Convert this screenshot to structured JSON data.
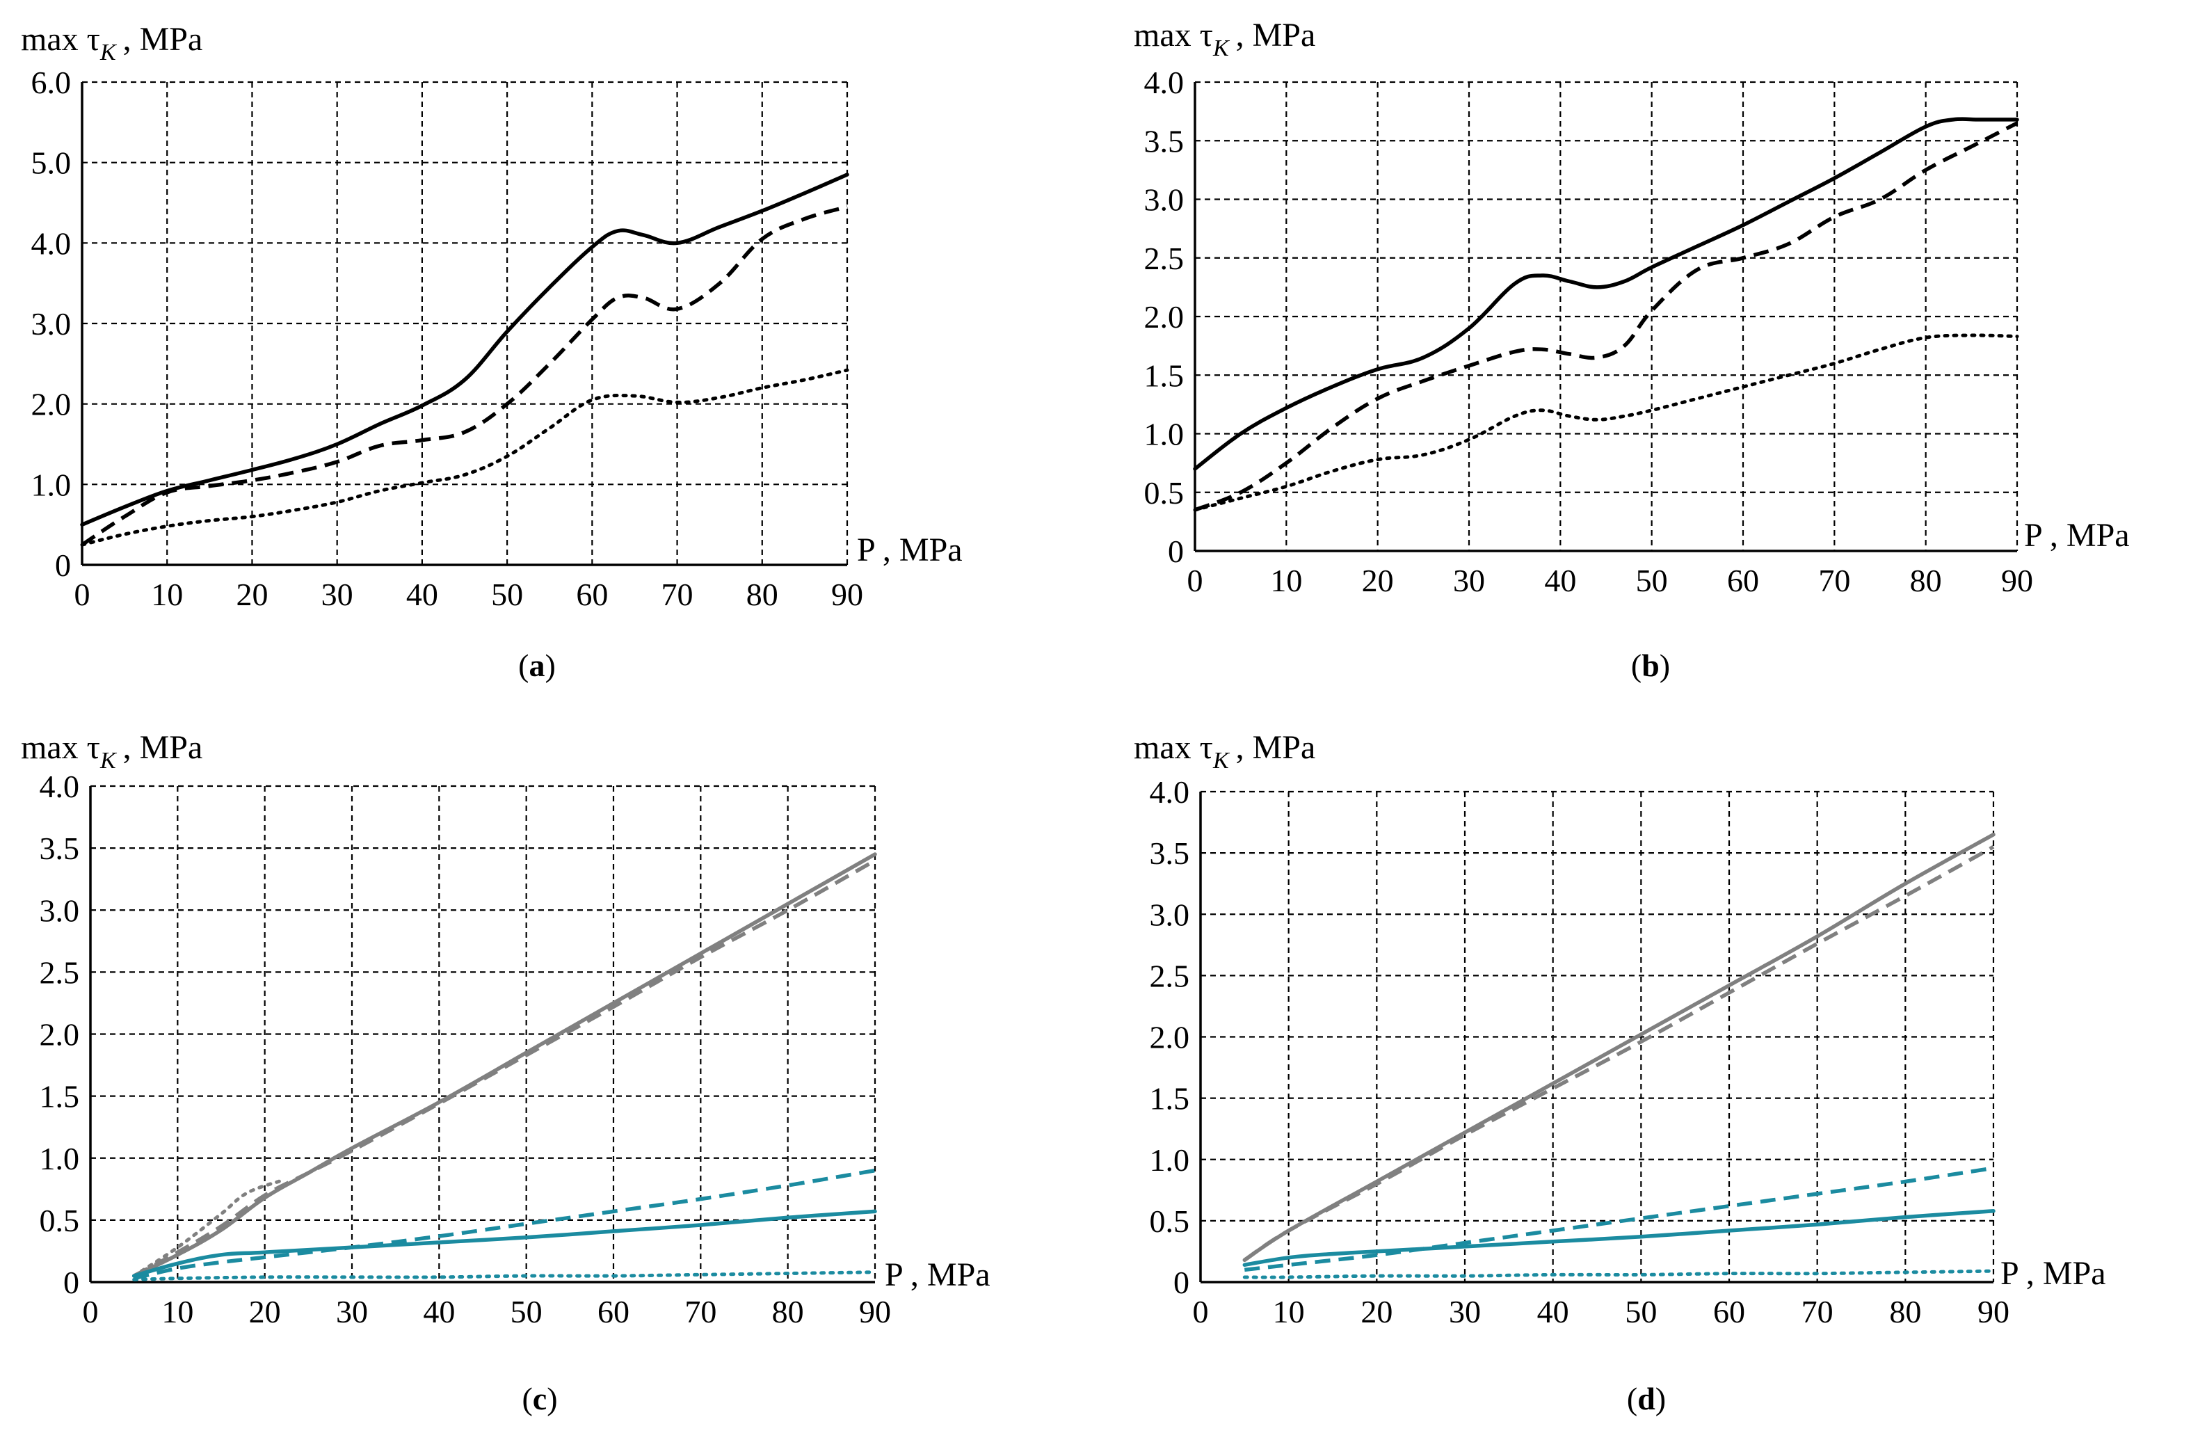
{
  "figure": {
    "charts": [
      {
        "caption_pre": "(",
        "caption_letter": "a",
        "caption_post": ")",
        "ylabel_prefix": "max τ",
        "ylabel_sub": "K",
        "ylabel_suffix": ", MPa",
        "xlabel": "P , MPa"
      },
      {
        "caption_pre": "(",
        "caption_letter": "b",
        "caption_post": ")",
        "ylabel_prefix": "max τ",
        "ylabel_sub": "K",
        "ylabel_suffix": ", MPa",
        "xlabel": "P , MPa"
      },
      {
        "caption_pre": "(",
        "caption_letter": "c",
        "caption_post": ")",
        "ylabel_prefix": "max τ",
        "ylabel_sub": "K",
        "ylabel_suffix": ", MPa",
        "xlabel": "P , MPa"
      },
      {
        "caption_pre": "(",
        "caption_letter": "d",
        "caption_post": ")",
        "ylabel_prefix": "max τ",
        "ylabel_sub": "K",
        "ylabel_suffix": ", MPa",
        "xlabel": "P , MPa"
      }
    ]
  },
  "chart_data": [
    {
      "type": "line",
      "id": "a",
      "title": "(a)",
      "xlabel": "P , MPa",
      "ylabel": "max τK , MPa",
      "xlim": [
        0,
        90
      ],
      "ylim": [
        0,
        6
      ],
      "grid": true,
      "x_ticks": [
        "0",
        "10",
        "20",
        "30",
        "40",
        "50",
        "60",
        "70",
        "80",
        "90"
      ],
      "y_ticks": [
        "0",
        "1.0",
        "2.0",
        "3.0",
        "4.0",
        "5.0",
        "6.0"
      ],
      "series": [
        {
          "name": "solid",
          "color": "#000000",
          "style": "solid",
          "x": [
            0,
            5,
            10,
            15,
            20,
            25,
            30,
            35,
            40,
            45,
            50,
            55,
            60,
            63,
            66,
            70,
            75,
            80,
            85,
            90
          ],
          "y": [
            0.5,
            0.72,
            0.92,
            1.05,
            1.18,
            1.32,
            1.5,
            1.75,
            1.98,
            2.3,
            2.9,
            3.45,
            3.95,
            4.15,
            4.1,
            4.0,
            4.2,
            4.4,
            4.62,
            4.85
          ]
        },
        {
          "name": "dashed",
          "color": "#000000",
          "style": "dashed",
          "x": [
            0,
            5,
            10,
            15,
            20,
            25,
            30,
            35,
            40,
            45,
            50,
            55,
            60,
            63,
            66,
            70,
            75,
            80,
            85,
            90
          ],
          "y": [
            0.25,
            0.6,
            0.9,
            0.98,
            1.05,
            1.15,
            1.28,
            1.48,
            1.55,
            1.65,
            2.0,
            2.5,
            3.05,
            3.32,
            3.32,
            3.18,
            3.5,
            4.05,
            4.3,
            4.45
          ]
        },
        {
          "name": "dotted",
          "color": "#000000",
          "style": "dotted",
          "x": [
            0,
            5,
            10,
            15,
            20,
            25,
            30,
            35,
            40,
            45,
            50,
            55,
            60,
            65,
            70,
            75,
            80,
            85,
            90
          ],
          "y": [
            0.25,
            0.38,
            0.48,
            0.55,
            0.6,
            0.68,
            0.78,
            0.92,
            1.02,
            1.12,
            1.35,
            1.7,
            2.05,
            2.1,
            2.02,
            2.08,
            2.2,
            2.3,
            2.42
          ]
        }
      ]
    },
    {
      "type": "line",
      "id": "b",
      "title": "(b)",
      "xlabel": "P , MPa",
      "ylabel": "max τK , MPa",
      "xlim": [
        0,
        90
      ],
      "ylim": [
        0,
        4
      ],
      "grid": true,
      "x_ticks": [
        "0",
        "10",
        "20",
        "30",
        "40",
        "50",
        "60",
        "70",
        "80",
        "90"
      ],
      "y_ticks": [
        "0",
        "0.5",
        "1.0",
        "1.5",
        "2.0",
        "2.5",
        "3.0",
        "3.5",
        "4.0"
      ],
      "series": [
        {
          "name": "solid",
          "color": "#000000",
          "style": "solid",
          "x": [
            0,
            5,
            10,
            15,
            20,
            25,
            30,
            35,
            38,
            41,
            44,
            47,
            50,
            55,
            60,
            65,
            70,
            75,
            80,
            83,
            86,
            90
          ],
          "y": [
            0.7,
            1.0,
            1.22,
            1.4,
            1.55,
            1.65,
            1.9,
            2.28,
            2.35,
            2.3,
            2.25,
            2.3,
            2.42,
            2.6,
            2.78,
            2.98,
            3.18,
            3.4,
            3.62,
            3.68,
            3.68,
            3.68
          ]
        },
        {
          "name": "dashed",
          "color": "#000000",
          "style": "dashed",
          "x": [
            0,
            5,
            10,
            15,
            20,
            25,
            30,
            35,
            38,
            41,
            44,
            47,
            50,
            55,
            60,
            65,
            70,
            75,
            80,
            85,
            90
          ],
          "y": [
            0.35,
            0.5,
            0.75,
            1.05,
            1.3,
            1.45,
            1.58,
            1.7,
            1.72,
            1.68,
            1.65,
            1.75,
            2.05,
            2.4,
            2.5,
            2.62,
            2.85,
            3.0,
            3.25,
            3.45,
            3.65
          ]
        },
        {
          "name": "dotted",
          "color": "#000000",
          "style": "dotted",
          "x": [
            0,
            5,
            10,
            15,
            20,
            25,
            30,
            35,
            38,
            41,
            44,
            47,
            50,
            55,
            60,
            65,
            70,
            75,
            80,
            85,
            90
          ],
          "y": [
            0.35,
            0.45,
            0.55,
            0.68,
            0.78,
            0.82,
            0.95,
            1.15,
            1.2,
            1.15,
            1.12,
            1.15,
            1.2,
            1.3,
            1.4,
            1.5,
            1.6,
            1.72,
            1.82,
            1.84,
            1.83
          ]
        }
      ]
    },
    {
      "type": "line",
      "id": "c",
      "title": "(c)",
      "xlabel": "P , MPa",
      "ylabel": "max τK , MPa",
      "xlim": [
        0,
        90
      ],
      "ylim": [
        0,
        4
      ],
      "grid": true,
      "x_ticks": [
        "0",
        "10",
        "20",
        "30",
        "40",
        "50",
        "60",
        "70",
        "80",
        "90"
      ],
      "y_ticks": [
        "0",
        "0.5",
        "1.0",
        "1.5",
        "2.0",
        "2.5",
        "3.0",
        "3.5",
        "4.0"
      ],
      "series": [
        {
          "name": "gray solid",
          "color": "#808080",
          "style": "solid",
          "x": [
            5,
            10,
            15,
            20,
            25,
            30,
            40,
            50,
            60,
            70,
            80,
            90
          ],
          "y": [
            0.05,
            0.22,
            0.42,
            0.68,
            0.88,
            1.08,
            1.45,
            1.85,
            2.25,
            2.65,
            3.05,
            3.45
          ]
        },
        {
          "name": "gray dashed",
          "color": "#808080",
          "style": "dashed",
          "x": [
            5,
            10,
            15,
            20,
            25,
            30,
            40,
            50,
            60,
            70,
            80,
            90
          ],
          "y": [
            0.05,
            0.24,
            0.45,
            0.7,
            0.88,
            1.06,
            1.44,
            1.83,
            2.22,
            2.62,
            3.0,
            3.4
          ]
        },
        {
          "name": "gray dotted",
          "color": "#808080",
          "style": "dotted",
          "x": [
            5,
            10,
            15,
            18,
            22
          ],
          "y": [
            0.05,
            0.28,
            0.55,
            0.72,
            0.82
          ]
        },
        {
          "name": "teal solid",
          "color": "#1b8ba0",
          "style": "solid",
          "x": [
            5,
            10,
            15,
            20,
            30,
            40,
            50,
            60,
            70,
            80,
            90
          ],
          "y": [
            0.05,
            0.15,
            0.22,
            0.24,
            0.28,
            0.32,
            0.36,
            0.41,
            0.46,
            0.52,
            0.57
          ]
        },
        {
          "name": "teal dashed",
          "color": "#1b8ba0",
          "style": "dashed",
          "x": [
            5,
            10,
            15,
            20,
            30,
            40,
            50,
            60,
            70,
            80,
            90
          ],
          "y": [
            0.03,
            0.11,
            0.16,
            0.2,
            0.28,
            0.37,
            0.47,
            0.57,
            0.67,
            0.78,
            0.9
          ]
        },
        {
          "name": "teal dotted",
          "color": "#1b8ba0",
          "style": "dotted",
          "x": [
            5,
            10,
            20,
            30,
            40,
            50,
            60,
            70,
            80,
            90
          ],
          "y": [
            0.02,
            0.03,
            0.04,
            0.04,
            0.04,
            0.05,
            0.05,
            0.06,
            0.07,
            0.08
          ]
        }
      ]
    },
    {
      "type": "line",
      "id": "d",
      "title": "(d)",
      "xlabel": "P , MPa",
      "ylabel": "max τK , MPa",
      "xlim": [
        0,
        90
      ],
      "ylim": [
        0,
        4
      ],
      "grid": true,
      "x_ticks": [
        "0",
        "10",
        "20",
        "30",
        "40",
        "50",
        "60",
        "70",
        "80",
        "90"
      ],
      "y_ticks": [
        "0",
        "0.5",
        "1.0",
        "1.5",
        "2.0",
        "2.5",
        "3.0",
        "3.5",
        "4.0"
      ],
      "series": [
        {
          "name": "gray solid",
          "color": "#808080",
          "style": "solid",
          "x": [
            5,
            10,
            20,
            30,
            40,
            50,
            60,
            70,
            80,
            90
          ],
          "y": [
            0.18,
            0.42,
            0.82,
            1.22,
            1.62,
            2.02,
            2.42,
            2.82,
            3.25,
            3.65
          ]
        },
        {
          "name": "gray dashed",
          "color": "#808080",
          "style": "dashed",
          "x": [
            5,
            10,
            20,
            30,
            40,
            50,
            60,
            70,
            80,
            90
          ],
          "y": [
            0.18,
            0.42,
            0.8,
            1.2,
            1.58,
            1.96,
            2.36,
            2.76,
            3.15,
            3.55
          ]
        },
        {
          "name": "teal solid",
          "color": "#1b8ba0",
          "style": "solid",
          "x": [
            5,
            10,
            15,
            20,
            30,
            40,
            50,
            60,
            70,
            80,
            90
          ],
          "y": [
            0.14,
            0.2,
            0.23,
            0.25,
            0.29,
            0.33,
            0.37,
            0.42,
            0.47,
            0.53,
            0.58
          ]
        },
        {
          "name": "teal dashed",
          "color": "#1b8ba0",
          "style": "dashed",
          "x": [
            5,
            10,
            20,
            30,
            40,
            50,
            60,
            70,
            80,
            90
          ],
          "y": [
            0.1,
            0.14,
            0.22,
            0.32,
            0.42,
            0.52,
            0.62,
            0.72,
            0.82,
            0.93
          ]
        },
        {
          "name": "teal dotted",
          "color": "#1b8ba0",
          "style": "dotted",
          "x": [
            5,
            10,
            20,
            30,
            40,
            50,
            60,
            70,
            80,
            90
          ],
          "y": [
            0.04,
            0.04,
            0.05,
            0.05,
            0.06,
            0.06,
            0.07,
            0.07,
            0.08,
            0.09
          ]
        }
      ]
    }
  ]
}
